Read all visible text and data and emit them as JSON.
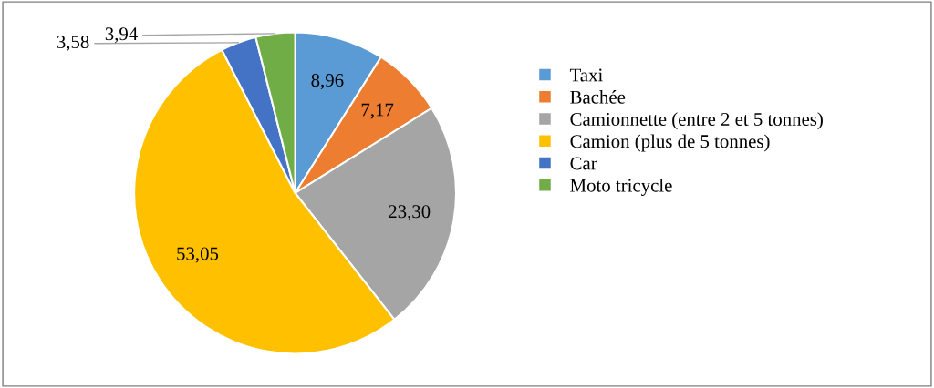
{
  "chart_data": {
    "type": "pie",
    "categories": [
      "Taxi",
      "Bachée",
      "Camionnette (entre 2 et 5 tonnes)",
      "Camion (plus de 5 tonnes)",
      "Car",
      "Moto tricycle"
    ],
    "values": [
      8.96,
      7.17,
      23.3,
      53.05,
      3.58,
      3.94
    ],
    "colors": [
      "#5b9bd5",
      "#ed7d31",
      "#a5a5a5",
      "#ffc000",
      "#4472c4",
      "#70ad47"
    ],
    "value_labels": [
      "8,96",
      "7,17",
      "23,30",
      "53,05",
      "3,58",
      "3,94"
    ],
    "legend": "right"
  }
}
